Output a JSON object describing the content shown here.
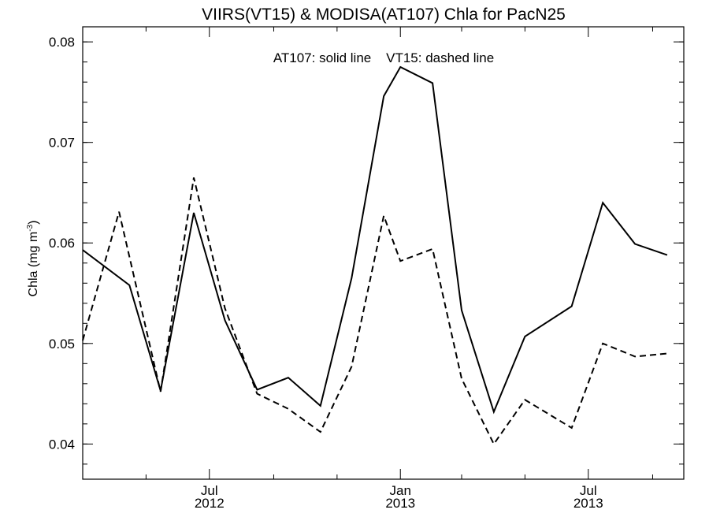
{
  "chart_data": {
    "type": "line",
    "title": "VIIRS(VT15) & MODISA(AT107)  Chla for PacN25",
    "ylabel": "Chla (mg m",
    "ylabel_sup": "-3",
    "ylabel_close": ")",
    "xlabel": "",
    "annotation": "AT107: solid line    VT15: dashed line",
    "ylim": [
      0.0365,
      0.0815
    ],
    "xlim": [
      "2012-03-01",
      "2013-10-01"
    ],
    "y_ticks": [
      {
        "value": 0.04,
        "label": "0.04"
      },
      {
        "value": 0.05,
        "label": "0.05"
      },
      {
        "value": 0.06,
        "label": "0.06"
      },
      {
        "value": 0.07,
        "label": "0.07"
      },
      {
        "value": 0.08,
        "label": "0.08"
      }
    ],
    "y_minor_step": 0.002,
    "x_major_ticks": [
      {
        "date": "2012-07-01",
        "month": "Jul",
        "year": "2012"
      },
      {
        "date": "2013-01-01",
        "month": "Jan",
        "year": "2013"
      },
      {
        "date": "2013-07-01",
        "month": "Jul",
        "year": "2013"
      }
    ],
    "x_minor_ticks": [
      "2012-05-01",
      "2012-09-01",
      "2012-11-01",
      "2013-03-01",
      "2013-05-01",
      "2013-09-01"
    ],
    "series": [
      {
        "name": "AT107",
        "style": "solid",
        "color": "#000000",
        "points": [
          {
            "x": "2012-03-01",
            "y": 0.0593
          },
          {
            "x": "2012-04-15",
            "y": 0.0558
          },
          {
            "x": "2012-05-15",
            "y": 0.0453
          },
          {
            "x": "2012-06-16",
            "y": 0.063
          },
          {
            "x": "2012-07-16",
            "y": 0.0523
          },
          {
            "x": "2012-08-16",
            "y": 0.0454
          },
          {
            "x": "2012-09-15",
            "y": 0.0466
          },
          {
            "x": "2012-10-16",
            "y": 0.0438
          },
          {
            "x": "2012-11-15",
            "y": 0.0565
          },
          {
            "x": "2012-12-16",
            "y": 0.0746
          },
          {
            "x": "2013-01-01",
            "y": 0.0775
          },
          {
            "x": "2013-02-01",
            "y": 0.0759
          },
          {
            "x": "2013-03-01",
            "y": 0.0533
          },
          {
            "x": "2013-04-01",
            "y": 0.0432
          },
          {
            "x": "2013-05-01",
            "y": 0.0507
          },
          {
            "x": "2013-06-15",
            "y": 0.0537
          },
          {
            "x": "2013-07-15",
            "y": 0.064
          },
          {
            "x": "2013-08-15",
            "y": 0.0599
          },
          {
            "x": "2013-09-15",
            "y": 0.0588
          }
        ]
      },
      {
        "name": "VT15",
        "style": "dashed",
        "color": "#000000",
        "points": [
          {
            "x": "2012-03-01",
            "y": 0.0503
          },
          {
            "x": "2012-04-05",
            "y": 0.0631
          },
          {
            "x": "2012-05-15",
            "y": 0.0452
          },
          {
            "x": "2012-06-16",
            "y": 0.0665
          },
          {
            "x": "2012-07-16",
            "y": 0.0535
          },
          {
            "x": "2012-08-16",
            "y": 0.045
          },
          {
            "x": "2012-09-15",
            "y": 0.0435
          },
          {
            "x": "2012-10-16",
            "y": 0.0412
          },
          {
            "x": "2012-11-15",
            "y": 0.0477
          },
          {
            "x": "2012-12-16",
            "y": 0.0627
          },
          {
            "x": "2013-01-01",
            "y": 0.0582
          },
          {
            "x": "2013-02-01",
            "y": 0.0594
          },
          {
            "x": "2013-03-01",
            "y": 0.0465
          },
          {
            "x": "2013-04-01",
            "y": 0.04
          },
          {
            "x": "2013-05-01",
            "y": 0.0444
          },
          {
            "x": "2013-06-15",
            "y": 0.0416
          },
          {
            "x": "2013-07-15",
            "y": 0.05
          },
          {
            "x": "2013-08-15",
            "y": 0.0487
          },
          {
            "x": "2013-09-15",
            "y": 0.049
          }
        ]
      }
    ]
  }
}
